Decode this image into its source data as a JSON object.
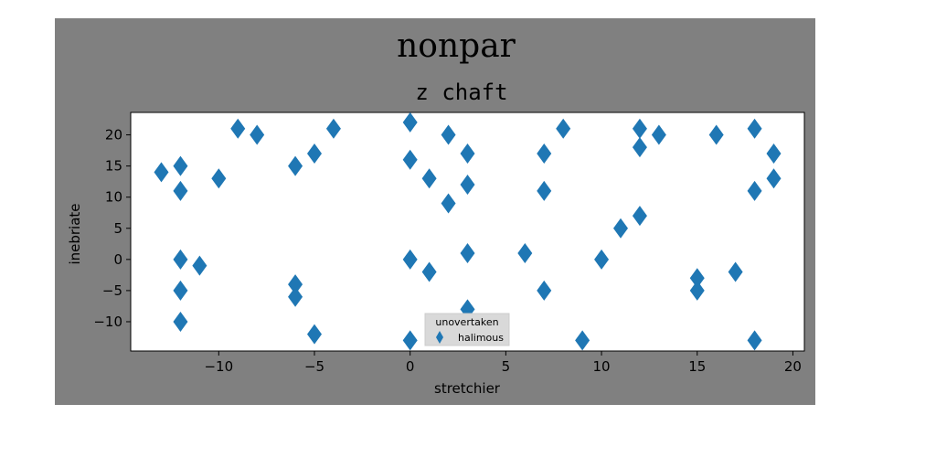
{
  "chart_data": {
    "type": "scatter",
    "suptitle": "nonpar",
    "title": "z chaft",
    "xlabel": "stretchier",
    "ylabel": "inebriate",
    "xlim": [
      -14.6,
      20.6
    ],
    "ylim": [
      -14.7,
      23.6
    ],
    "xticks": [
      -10,
      -5,
      0,
      5,
      10,
      15,
      20
    ],
    "yticks": [
      -10,
      -5,
      0,
      5,
      10,
      15,
      20
    ],
    "xtick_labels": [
      "−10",
      "−5",
      "0",
      "5",
      "10",
      "15",
      "20"
    ],
    "ytick_labels": [
      "−10",
      "−5",
      "0",
      "5",
      "10",
      "15",
      "20"
    ],
    "grid": false,
    "legend": {
      "title": "unovertaken",
      "placement": "lower center"
    },
    "colors": {
      "figure_bg": "#808080",
      "axes_bg": "#ffffff",
      "marker": "#1f77b4"
    },
    "series": [
      {
        "name": "halimous",
        "marker": "thin-diamond",
        "x": [
          -13,
          -12,
          -12,
          -12,
          -12,
          -12,
          -11,
          -10,
          -9,
          -8,
          -6,
          -6,
          -6,
          -5,
          -5,
          -4,
          0,
          0,
          0,
          0,
          1,
          1,
          2,
          2,
          3,
          3,
          3,
          3,
          6,
          7,
          7,
          7,
          8,
          9,
          10,
          11,
          12,
          12,
          12,
          13,
          15,
          15,
          16,
          17,
          18,
          18,
          18,
          19,
          19
        ],
        "y": [
          14,
          15,
          11,
          0,
          -5,
          -10,
          -1,
          13,
          21,
          20,
          15,
          -4,
          -6,
          17,
          -12,
          21,
          22,
          16,
          0,
          -13,
          13,
          -2,
          20,
          9,
          17,
          12,
          1,
          -8,
          1,
          17,
          11,
          -5,
          21,
          -13,
          0,
          5,
          21,
          18,
          7,
          20,
          -3,
          -5,
          20,
          -2,
          21,
          11,
          -13,
          17,
          13
        ]
      }
    ]
  }
}
